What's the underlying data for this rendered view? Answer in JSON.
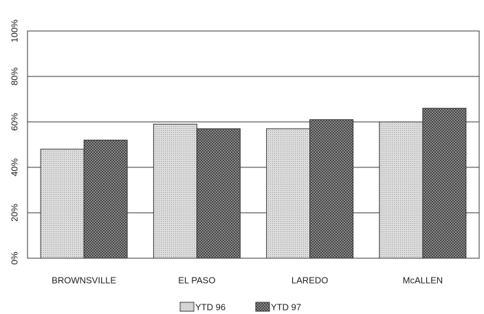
{
  "chart_data": {
    "type": "bar",
    "categories": [
      "BROWNSVILLE",
      "EL PASO",
      "LAREDO",
      "McALLEN"
    ],
    "series": [
      {
        "name": "YTD 96",
        "color": "#dcdcdc",
        "values": [
          48,
          59,
          57,
          60
        ]
      },
      {
        "name": "YTD 97",
        "color": "#8c8c8c",
        "values": [
          52,
          57,
          61,
          66
        ]
      }
    ],
    "ylim": [
      0,
      100
    ],
    "yticks": [
      {
        "value": 0,
        "label": "0%"
      },
      {
        "value": 20,
        "label": "20%"
      },
      {
        "value": 40,
        "label": "40%"
      },
      {
        "value": 60,
        "label": "60%"
      },
      {
        "value": 80,
        "label": "80%"
      },
      {
        "value": 100,
        "label": "100%"
      }
    ],
    "grid": true
  }
}
